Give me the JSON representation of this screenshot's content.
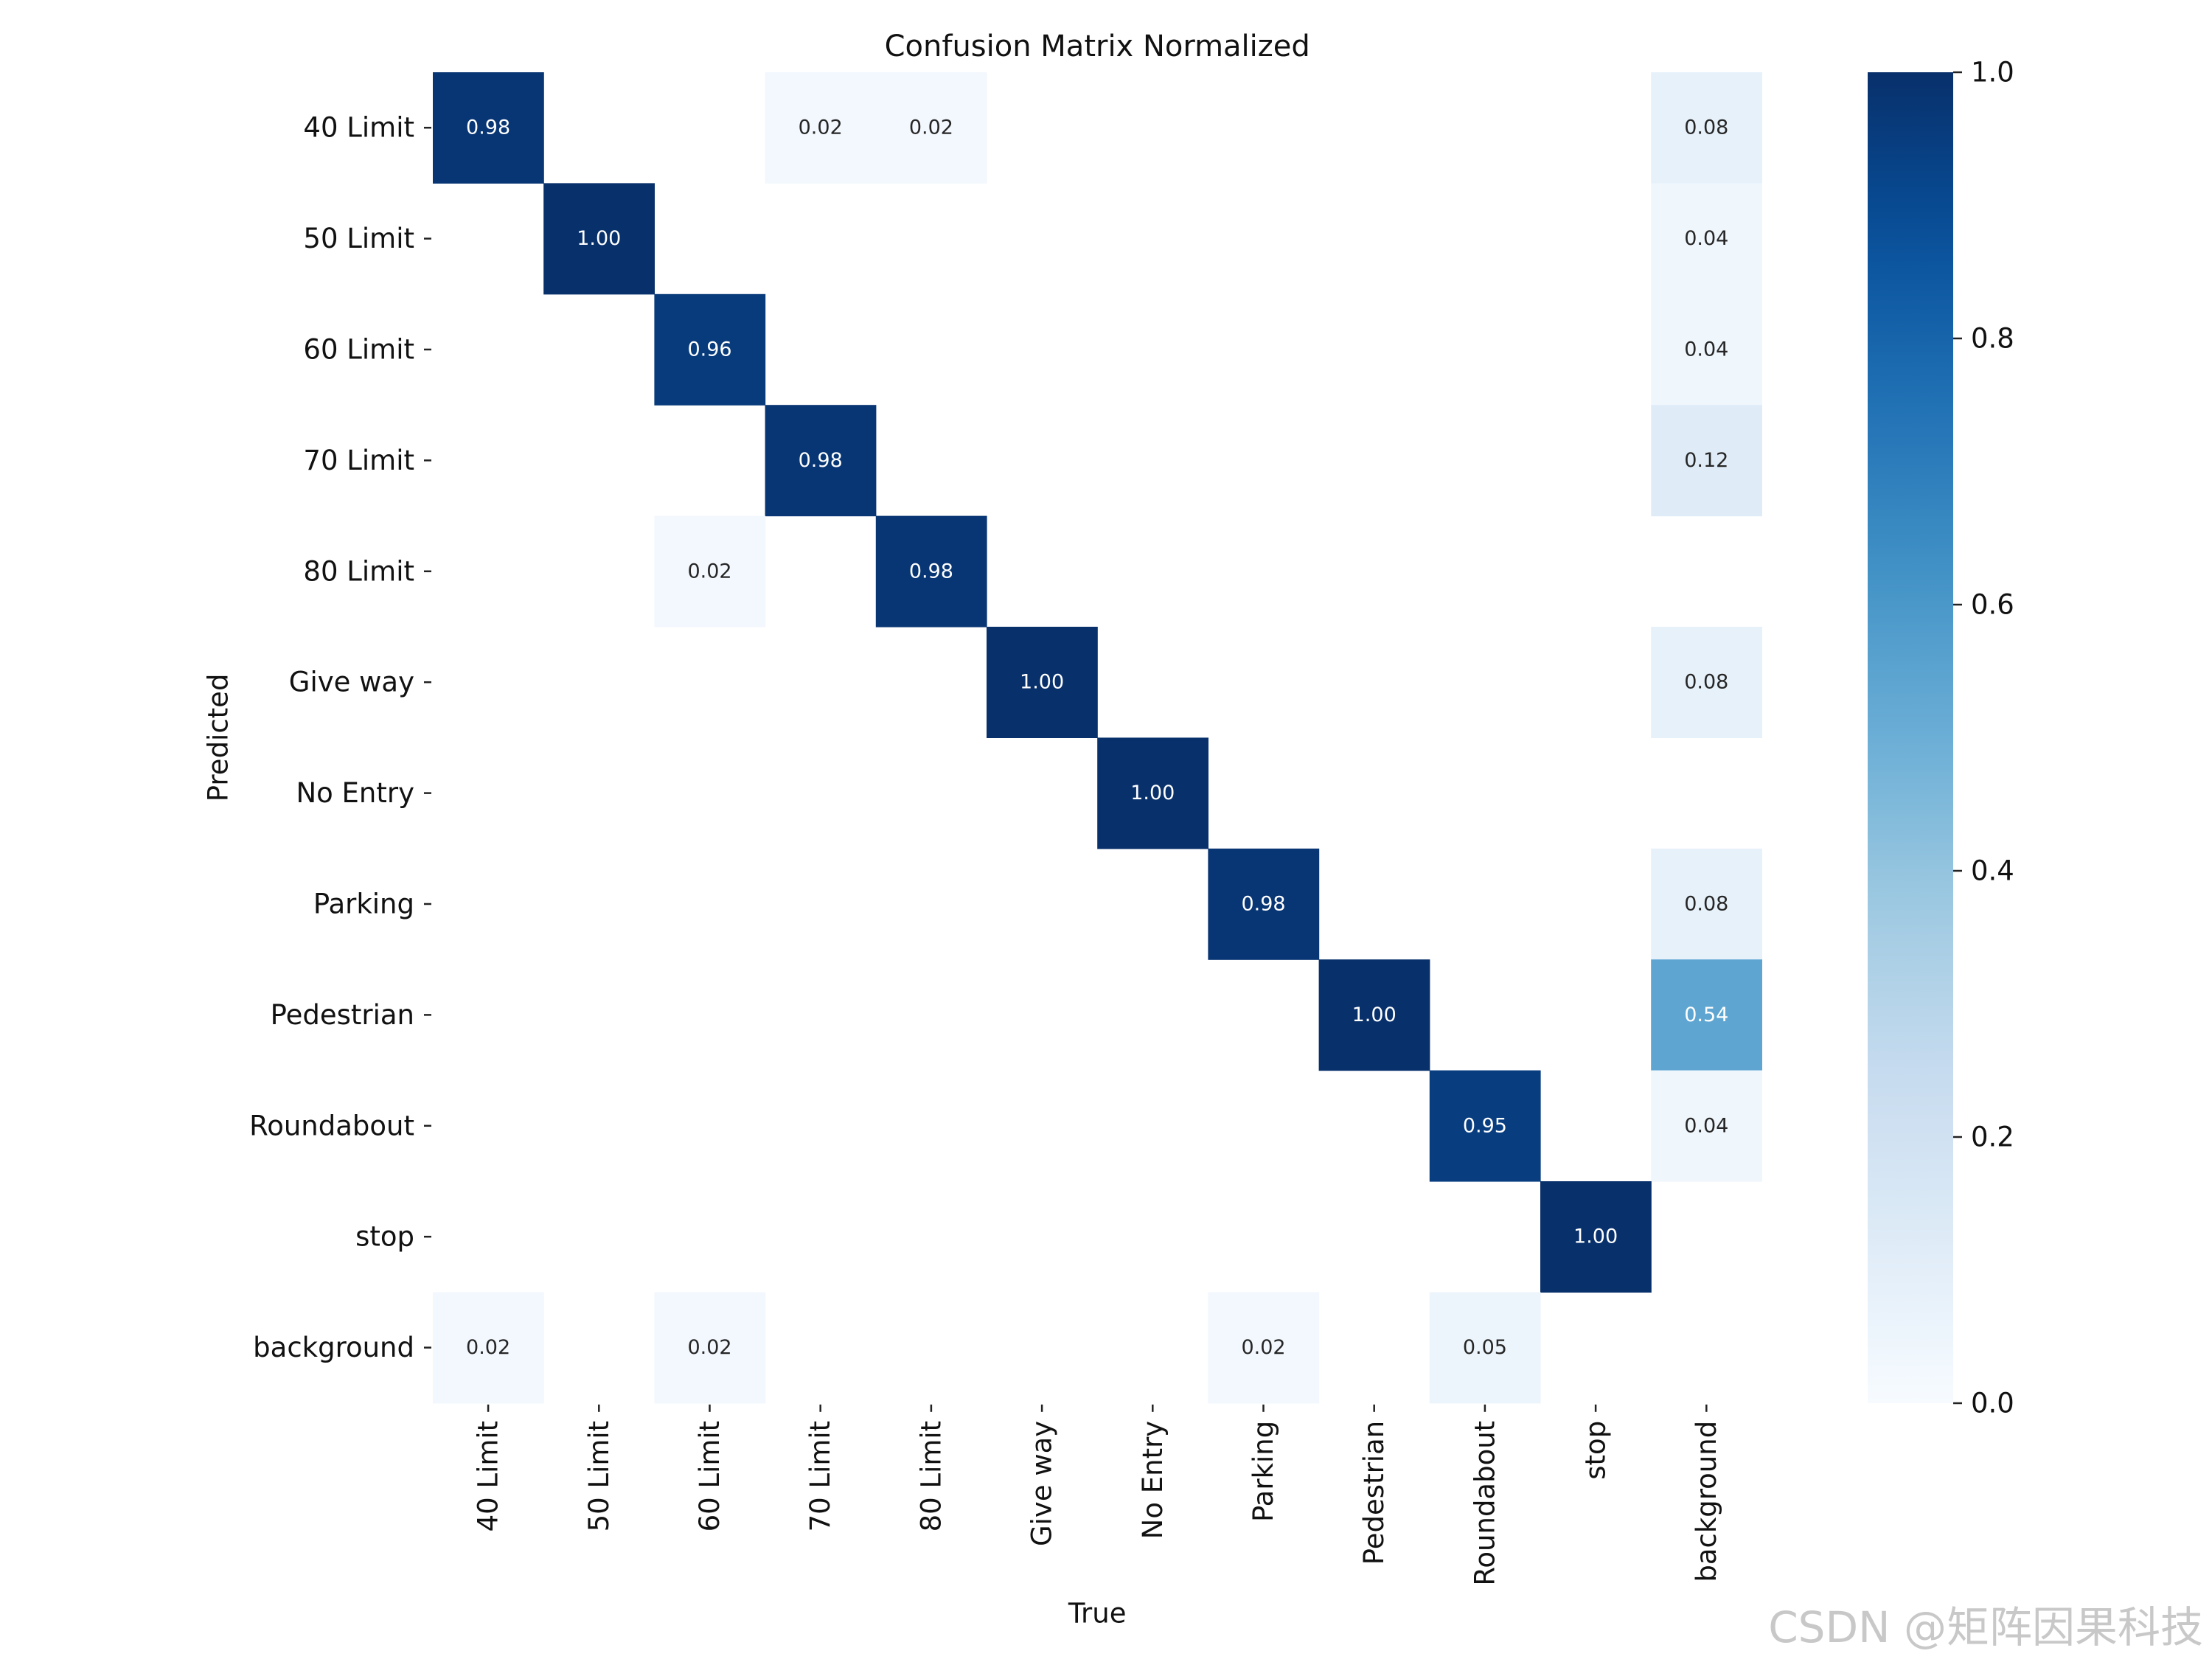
{
  "chart_data": {
    "type": "heatmap",
    "title": "Confusion Matrix Normalized",
    "xlabel": "True",
    "ylabel": "Predicted",
    "x_categories": [
      "40 Limit",
      "50 Limit",
      "60 Limit",
      "70 Limit",
      "80 Limit",
      "Give way",
      "No Entry",
      "Parking",
      "Pedestrian",
      "Roundabout",
      "stop",
      "background"
    ],
    "y_categories": [
      "40 Limit",
      "50 Limit",
      "60 Limit",
      "70 Limit",
      "80 Limit",
      "Give way",
      "No Entry",
      "Parking",
      "Pedestrian",
      "Roundabout",
      "stop",
      "background"
    ],
    "values": [
      [
        0.98,
        null,
        null,
        0.02,
        0.02,
        null,
        null,
        null,
        null,
        null,
        null,
        0.08
      ],
      [
        null,
        1.0,
        null,
        null,
        null,
        null,
        null,
        null,
        null,
        null,
        null,
        0.04
      ],
      [
        null,
        null,
        0.96,
        null,
        null,
        null,
        null,
        null,
        null,
        null,
        null,
        0.04
      ],
      [
        null,
        null,
        null,
        0.98,
        null,
        null,
        null,
        null,
        null,
        null,
        null,
        0.12
      ],
      [
        null,
        null,
        0.02,
        null,
        0.98,
        null,
        null,
        null,
        null,
        null,
        null,
        null
      ],
      [
        null,
        null,
        null,
        null,
        null,
        1.0,
        null,
        null,
        null,
        null,
        null,
        0.08
      ],
      [
        null,
        null,
        null,
        null,
        null,
        null,
        1.0,
        null,
        null,
        null,
        null,
        null
      ],
      [
        null,
        null,
        null,
        null,
        null,
        null,
        null,
        0.98,
        null,
        null,
        null,
        0.08
      ],
      [
        null,
        null,
        null,
        null,
        null,
        null,
        null,
        null,
        1.0,
        null,
        null,
        0.54
      ],
      [
        null,
        null,
        null,
        null,
        null,
        null,
        null,
        null,
        null,
        0.95,
        null,
        0.04
      ],
      [
        null,
        null,
        null,
        null,
        null,
        null,
        null,
        null,
        null,
        null,
        1.0,
        null
      ],
      [
        0.02,
        null,
        0.02,
        null,
        null,
        null,
        null,
        0.02,
        null,
        0.05,
        null,
        null
      ]
    ],
    "value_format": "0.00",
    "colorbar": {
      "range": [
        0.0,
        1.0
      ],
      "ticks": [
        "0.0",
        "0.2",
        "0.4",
        "0.6",
        "0.8",
        "1.0"
      ],
      "colormap": "Blues",
      "colors": [
        "#f7fbff",
        "#deebf7",
        "#c6dbef",
        "#9ecae1",
        "#6baed6",
        "#4292c6",
        "#2171b5",
        "#08519c",
        "#08306b"
      ]
    },
    "grid": false
  },
  "watermark": "CSDN @矩阵因果科技"
}
